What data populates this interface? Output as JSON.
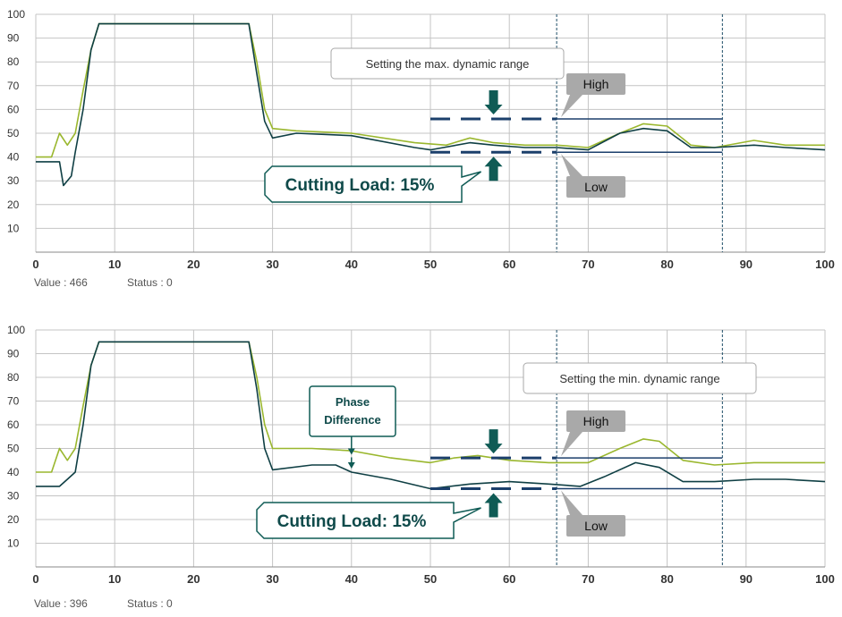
{
  "chart_data": [
    {
      "type": "line",
      "xlim": [
        0,
        100
      ],
      "ylim": [
        0,
        100
      ],
      "x_ticks": [
        "0",
        "10",
        "20",
        "30",
        "40",
        "50",
        "60",
        "70",
        "80",
        "90",
        "100"
      ],
      "y_ticks": [
        "10",
        "20",
        "30",
        "40",
        "50",
        "60",
        "70",
        "80",
        "90",
        "100"
      ],
      "grid": true,
      "series": [
        {
          "color": "#9ab72e",
          "points": [
            [
              0,
              40
            ],
            [
              2,
              40
            ],
            [
              3,
              50
            ],
            [
              4,
              45
            ],
            [
              5,
              50
            ],
            [
              6,
              68
            ],
            [
              7,
              85
            ],
            [
              8,
              96
            ],
            [
              27,
              96
            ],
            [
              28,
              80
            ],
            [
              29,
              60
            ],
            [
              30,
              52
            ],
            [
              33,
              51
            ],
            [
              40,
              50
            ],
            [
              48,
              46
            ],
            [
              52,
              45
            ],
            [
              55,
              48
            ],
            [
              58,
              46
            ],
            [
              62,
              45
            ],
            [
              66,
              45
            ],
            [
              70,
              44
            ],
            [
              74,
              50
            ],
            [
              77,
              54
            ],
            [
              80,
              53
            ],
            [
              83,
              45
            ],
            [
              86,
              44
            ],
            [
              91,
              47
            ],
            [
              95,
              45
            ],
            [
              100,
              45
            ]
          ]
        },
        {
          "color": "#0f3f44",
          "points": [
            [
              0,
              38
            ],
            [
              3,
              38
            ],
            [
              3.5,
              28
            ],
            [
              4.5,
              32
            ],
            [
              5,
              42
            ],
            [
              6,
              60
            ],
            [
              7,
              85
            ],
            [
              8,
              96
            ],
            [
              27,
              96
            ],
            [
              28,
              75
            ],
            [
              29,
              55
            ],
            [
              30,
              48
            ],
            [
              33,
              50
            ],
            [
              40,
              49
            ],
            [
              48,
              44
            ],
            [
              50,
              43
            ],
            [
              55,
              46
            ],
            [
              58,
              45
            ],
            [
              62,
              44
            ],
            [
              66,
              44
            ],
            [
              70,
              43
            ],
            [
              74,
              50
            ],
            [
              77,
              52
            ],
            [
              80,
              51
            ],
            [
              83,
              44
            ],
            [
              86,
              44
            ],
            [
              91,
              45
            ],
            [
              95,
              44
            ],
            [
              100,
              43
            ]
          ]
        }
      ],
      "high_line": 56,
      "low_line": 42,
      "dashed_segment": [
        50,
        66
      ],
      "solid_segment": [
        66,
        87
      ],
      "vlines": [
        66,
        87
      ],
      "arrow_x": 58,
      "annotations": {
        "setting": "Setting the max. dynamic range",
        "high": "High",
        "low": "Low",
        "load": "Cutting Load: 15%"
      },
      "status": {
        "value": "Value : 466",
        "status": "Status : 0"
      }
    },
    {
      "type": "line",
      "xlim": [
        0,
        100
      ],
      "ylim": [
        0,
        100
      ],
      "x_ticks": [
        "0",
        "10",
        "20",
        "30",
        "40",
        "50",
        "60",
        "70",
        "80",
        "90",
        "100"
      ],
      "y_ticks": [
        "10",
        "20",
        "30",
        "40",
        "50",
        "60",
        "70",
        "80",
        "90",
        "100"
      ],
      "grid": true,
      "series": [
        {
          "color": "#9ab72e",
          "points": [
            [
              0,
              40
            ],
            [
              2,
              40
            ],
            [
              3,
              50
            ],
            [
              4,
              45
            ],
            [
              5,
              50
            ],
            [
              6,
              68
            ],
            [
              7,
              85
            ],
            [
              8,
              95
            ],
            [
              27,
              95
            ],
            [
              28,
              80
            ],
            [
              29,
              60
            ],
            [
              30,
              50
            ],
            [
              35,
              50
            ],
            [
              40,
              49
            ],
            [
              45,
              46
            ],
            [
              50,
              44
            ],
            [
              53,
              46
            ],
            [
              56,
              47
            ],
            [
              60,
              45
            ],
            [
              65,
              44
            ],
            [
              70,
              44
            ],
            [
              74,
              50
            ],
            [
              77,
              54
            ],
            [
              79,
              53
            ],
            [
              82,
              45
            ],
            [
              86,
              43
            ],
            [
              91,
              44
            ],
            [
              95,
              44
            ],
            [
              100,
              44
            ]
          ]
        },
        {
          "color": "#0f3f44",
          "points": [
            [
              0,
              34
            ],
            [
              3,
              34
            ],
            [
              4,
              37
            ],
            [
              5,
              40
            ],
            [
              6,
              60
            ],
            [
              7,
              85
            ],
            [
              8,
              95
            ],
            [
              27,
              95
            ],
            [
              28,
              75
            ],
            [
              29,
              50
            ],
            [
              30,
              41
            ],
            [
              35,
              43
            ],
            [
              38,
              43
            ],
            [
              40,
              40
            ],
            [
              45,
              37
            ],
            [
              50,
              33
            ],
            [
              55,
              35
            ],
            [
              60,
              36
            ],
            [
              65,
              35
            ],
            [
              69,
              34
            ],
            [
              72,
              38
            ],
            [
              76,
              44
            ],
            [
              79,
              42
            ],
            [
              82,
              36
            ],
            [
              86,
              36
            ],
            [
              91,
              37
            ],
            [
              95,
              37
            ],
            [
              100,
              36
            ]
          ]
        }
      ],
      "high_line": 46,
      "low_line": 33,
      "dashed_segment": [
        50,
        66
      ],
      "solid_segment": [
        66,
        87
      ],
      "vlines": [
        66,
        87
      ],
      "arrow_x": 58,
      "annotations": {
        "setting": "Setting the min. dynamic range",
        "high": "High",
        "low": "Low",
        "load": "Cutting Load: 15%",
        "phase_line1": "Phase",
        "phase_line2": "Difference"
      },
      "status": {
        "value": "Value : 396",
        "status": "Status : 0"
      }
    }
  ]
}
